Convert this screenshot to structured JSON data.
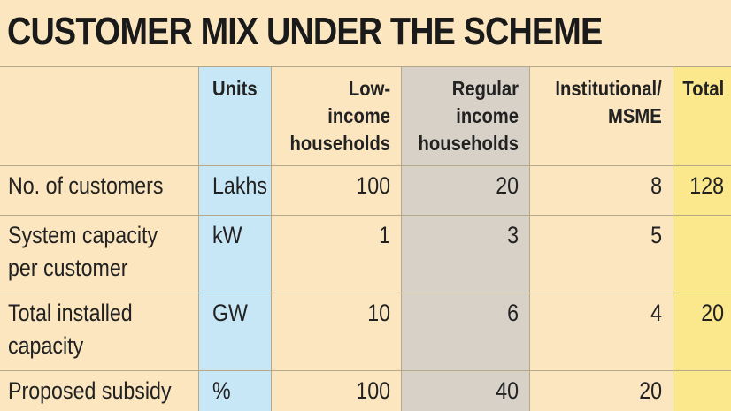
{
  "title": "CUSTOMER MIX UNDER THE SCHEME",
  "chart_data": {
    "type": "table",
    "title": "CUSTOMER MIX UNDER THE SCHEME",
    "columns": [
      "Units",
      "Low-\nincome\nhouseholds",
      "Regular\nincome\nhouseholds",
      "Institutional/\nMSME",
      "Total"
    ],
    "rows": [
      {
        "label": "No. of customers",
        "values": [
          "Lakhs",
          "100",
          "20",
          "8",
          "128"
        ]
      },
      {
        "label": "System capacity\nper customer",
        "values": [
          "kW",
          "1",
          "3",
          "5",
          ""
        ]
      },
      {
        "label": "Total installed\ncapacity",
        "values": [
          "GW",
          "10",
          "6",
          "4",
          "20"
        ]
      },
      {
        "label": "Proposed subsidy",
        "values": [
          "%",
          "100",
          "40",
          "20",
          ""
        ]
      }
    ]
  },
  "colors": {
    "background": "#fbe6c0",
    "units_column": "#c7e6f6",
    "regular_income_column": "#d7d1c8",
    "total_column": "#fbe88d"
  }
}
